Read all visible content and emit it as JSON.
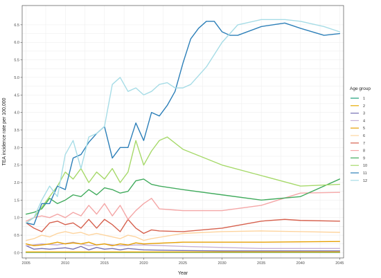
{
  "chart_data": {
    "type": "line",
    "title": "",
    "xlabel": "Year",
    "ylabel": "TEA incidence rate per 100,000",
    "xlim": [
      2004.5,
      2045.5
    ],
    "ylim": [
      -0.15,
      7.05
    ],
    "x_ticks": [
      2005,
      2010,
      2015,
      2020,
      2025,
      2030,
      2035,
      2040,
      2045
    ],
    "y_ticks": [
      0.0,
      0.5,
      1.0,
      1.5,
      2.0,
      2.5,
      3.0,
      3.5,
      4.0,
      4.5,
      5.0,
      5.5,
      6.0,
      6.5
    ],
    "grid": true,
    "legend": {
      "title": "Age group",
      "position": "right"
    },
    "series": [
      {
        "name": "1",
        "color": "#1b9e77",
        "x": [
          2005,
          2010,
          2015,
          2020,
          2030,
          2045
        ],
        "y": [
          0.01,
          0.01,
          0.01,
          0.01,
          0.01,
          0.01
        ]
      },
      {
        "name": "2",
        "color": "#e6ab02",
        "x": [
          2005,
          2010,
          2015,
          2020,
          2030,
          2045
        ],
        "y": [
          0.02,
          0.02,
          0.02,
          0.02,
          0.02,
          0.02
        ]
      },
      {
        "name": "3",
        "color": "#7570b3",
        "x": [
          2005,
          2006,
          2007,
          2008,
          2009,
          2010,
          2011,
          2012,
          2013,
          2014,
          2015,
          2016,
          2017,
          2018,
          2019,
          2020,
          2025,
          2030,
          2035,
          2040,
          2045
        ],
        "y": [
          0.2,
          0.1,
          0.12,
          0.1,
          0.12,
          0.14,
          0.1,
          0.18,
          0.08,
          0.15,
          0.1,
          0.12,
          0.08,
          0.12,
          0.1,
          0.08,
          0.06,
          0.05,
          0.05,
          0.05,
          0.05
        ]
      },
      {
        "name": "4",
        "color": "#c5b0d5",
        "x": [
          2005,
          2007,
          2009,
          2011,
          2013,
          2015,
          2017,
          2019,
          2020,
          2025,
          2030,
          2035,
          2040,
          2045
        ],
        "y": [
          0.2,
          0.25,
          0.22,
          0.3,
          0.2,
          0.25,
          0.2,
          0.22,
          0.22,
          0.18,
          0.15,
          0.12,
          0.12,
          0.12
        ]
      },
      {
        "name": "5",
        "color": "#e69f00",
        "x": [
          2005,
          2006,
          2007,
          2008,
          2009,
          2010,
          2011,
          2012,
          2013,
          2014,
          2015,
          2016,
          2017,
          2018,
          2019,
          2020,
          2025,
          2030,
          2035,
          2040,
          2045
        ],
        "y": [
          0.25,
          0.2,
          0.22,
          0.25,
          0.3,
          0.25,
          0.28,
          0.25,
          0.3,
          0.22,
          0.25,
          0.2,
          0.25,
          0.22,
          0.28,
          0.25,
          0.3,
          0.3,
          0.3,
          0.31,
          0.32
        ]
      },
      {
        "name": "6",
        "color": "#fdd49e",
        "x": [
          2005,
          2006,
          2007,
          2008,
          2009,
          2010,
          2011,
          2012,
          2013,
          2014,
          2015,
          2016,
          2017,
          2018,
          2019,
          2020,
          2021,
          2025,
          2030,
          2035,
          2040,
          2045
        ],
        "y": [
          0.35,
          0.4,
          0.5,
          0.45,
          0.55,
          0.6,
          0.55,
          0.58,
          0.5,
          0.55,
          0.5,
          0.45,
          0.4,
          0.5,
          0.45,
          0.35,
          0.4,
          0.55,
          0.6,
          0.62,
          0.6,
          0.58
        ]
      },
      {
        "name": "7",
        "color": "#d6604d",
        "x": [
          2005,
          2006,
          2007,
          2008,
          2009,
          2010,
          2011,
          2012,
          2013,
          2014,
          2015,
          2016,
          2017,
          2018,
          2019,
          2020,
          2021,
          2022,
          2025,
          2030,
          2035,
          2038,
          2040,
          2045
        ],
        "y": [
          0.85,
          0.7,
          0.6,
          0.85,
          0.9,
          0.8,
          0.85,
          0.7,
          0.95,
          0.7,
          0.95,
          0.8,
          0.6,
          0.95,
          0.7,
          0.55,
          0.65,
          0.62,
          0.6,
          0.7,
          0.9,
          0.95,
          0.92,
          0.9
        ]
      },
      {
        "name": "8",
        "color": "#f4a6a6",
        "x": [
          2005,
          2006,
          2007,
          2008,
          2009,
          2010,
          2011,
          2012,
          2013,
          2014,
          2015,
          2016,
          2017,
          2018,
          2019,
          2020,
          2021,
          2022,
          2025,
          2030,
          2035,
          2040,
          2045
        ],
        "y": [
          0.9,
          1.0,
          1.05,
          1.0,
          1.1,
          1.0,
          1.15,
          1.05,
          1.35,
          1.1,
          1.4,
          1.05,
          1.35,
          0.95,
          1.2,
          1.4,
          1.55,
          1.25,
          1.2,
          1.2,
          1.35,
          1.7,
          1.72
        ]
      },
      {
        "name": "9",
        "color": "#41ab5d",
        "x": [
          2005,
          2006,
          2007,
          2008,
          2009,
          2010,
          2011,
          2012,
          2013,
          2014,
          2015,
          2016,
          2017,
          2018,
          2019,
          2020,
          2021,
          2022,
          2025,
          2030,
          2035,
          2040,
          2045
        ],
        "y": [
          1.1,
          1.15,
          1.25,
          1.55,
          1.4,
          1.5,
          1.65,
          1.6,
          1.8,
          1.65,
          1.85,
          1.8,
          1.7,
          1.75,
          2.05,
          2.1,
          1.95,
          1.9,
          1.8,
          1.65,
          1.5,
          1.6,
          2.1
        ]
      },
      {
        "name": "10",
        "color": "#a6d96a",
        "x": [
          2005,
          2006,
          2007,
          2008,
          2009,
          2010,
          2011,
          2012,
          2013,
          2014,
          2015,
          2016,
          2017,
          2018,
          2019,
          2020,
          2021,
          2022,
          2023,
          2025,
          2030,
          2035,
          2040,
          2045
        ],
        "y": [
          0.85,
          1.0,
          1.3,
          1.6,
          1.9,
          2.3,
          2.1,
          2.4,
          2.0,
          2.3,
          2.1,
          2.4,
          2.0,
          2.3,
          3.2,
          2.5,
          2.9,
          3.2,
          3.3,
          2.95,
          2.5,
          2.2,
          1.9,
          1.95
        ]
      },
      {
        "name": "11",
        "color": "#2c7fb8",
        "x": [
          2005,
          2006,
          2007,
          2008,
          2009,
          2010,
          2011,
          2012,
          2013,
          2014,
          2015,
          2016,
          2017,
          2018,
          2019,
          2020,
          2021,
          2022,
          2023,
          2024,
          2025,
          2026,
          2027,
          2028,
          2029,
          2030,
          2031,
          2032,
          2035,
          2038,
          2040,
          2043,
          2045
        ],
        "y": [
          0.85,
          0.8,
          1.4,
          1.4,
          1.9,
          1.8,
          2.7,
          2.8,
          3.15,
          3.4,
          3.6,
          2.7,
          3.0,
          3.0,
          3.7,
          3.2,
          4.0,
          3.9,
          4.2,
          4.6,
          5.4,
          6.1,
          6.4,
          6.6,
          6.6,
          6.3,
          6.2,
          6.2,
          6.45,
          6.55,
          6.4,
          6.2,
          6.25
        ]
      },
      {
        "name": "12",
        "color": "#a6dce6",
        "x": [
          2005,
          2006,
          2007,
          2008,
          2009,
          2010,
          2011,
          2012,
          2013,
          2014,
          2015,
          2016,
          2017,
          2018,
          2019,
          2020,
          2021,
          2022,
          2023,
          2024,
          2025,
          2026,
          2028,
          2030,
          2032,
          2035,
          2038,
          2040,
          2043,
          2045
        ],
        "y": [
          0.85,
          1.0,
          1.5,
          1.9,
          1.6,
          2.8,
          3.2,
          2.4,
          3.3,
          3.4,
          3.6,
          4.8,
          5.0,
          4.6,
          4.7,
          4.5,
          4.6,
          4.8,
          4.85,
          4.7,
          4.7,
          4.8,
          5.3,
          6.0,
          6.5,
          6.65,
          6.65,
          6.6,
          6.45,
          6.3
        ]
      }
    ]
  }
}
